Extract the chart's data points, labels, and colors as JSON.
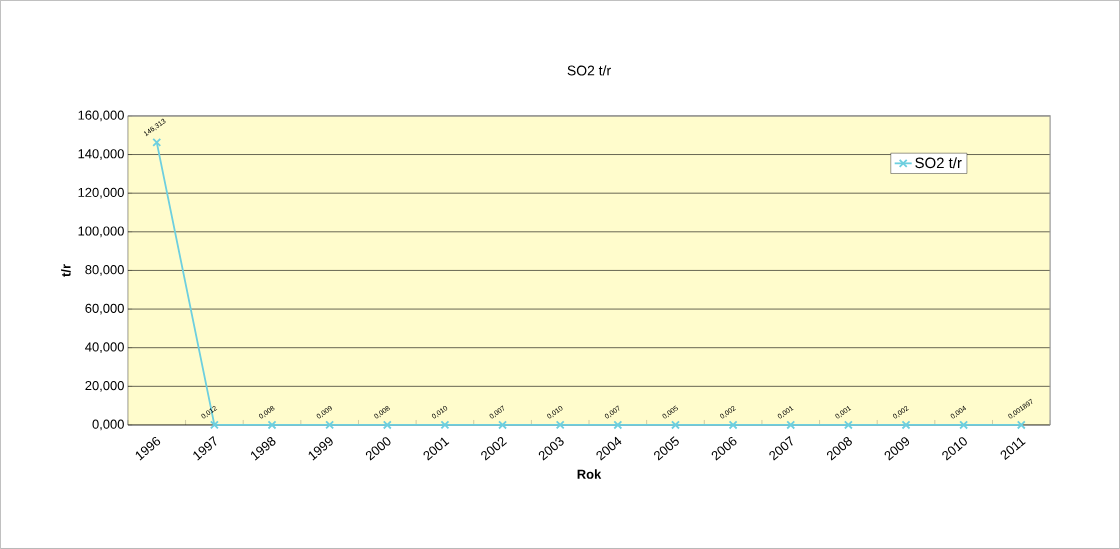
{
  "chart_data": {
    "type": "line",
    "title": "SO2  t/r",
    "xlabel": "Rok",
    "ylabel": "t/r",
    "categories": [
      "1996",
      "1997",
      "1998",
      "1999",
      "2000",
      "2001",
      "2002",
      "2003",
      "2004",
      "2005",
      "2006",
      "2007",
      "2008",
      "2009",
      "2010",
      "2011"
    ],
    "series": [
      {
        "name": "SO2  t/r",
        "color": "#6dcfdf",
        "values": [
          146.313,
          0.012,
          0.008,
          0.009,
          0.008,
          0.01,
          0.007,
          0.01,
          0.007,
          0.005,
          0.002,
          0.001,
          0.001,
          0.002,
          0.004,
          0.001897
        ],
        "value_labels": [
          "146,313",
          "0,012",
          "0,008",
          "0,009",
          "0,008",
          "0,010",
          "0,007",
          "0,010",
          "0,007",
          "0,005",
          "0,002",
          "0,001",
          "0,001",
          "0,002",
          "0,004",
          "0,001897"
        ]
      }
    ],
    "ylim": [
      0,
      160
    ],
    "yticks": [
      {
        "value": 0,
        "label": "0,000"
      },
      {
        "value": 20,
        "label": "20,000"
      },
      {
        "value": 40,
        "label": "40,000"
      },
      {
        "value": 60,
        "label": "60,000"
      },
      {
        "value": 80,
        "label": "80,000"
      },
      {
        "value": 100,
        "label": "100,000"
      },
      {
        "value": 120,
        "label": "120,000"
      },
      {
        "value": 140,
        "label": "140,000"
      },
      {
        "value": 160,
        "label": "160,000"
      }
    ],
    "grid": "y",
    "legend": "top right",
    "marker": "cross",
    "line_style": "solid"
  }
}
